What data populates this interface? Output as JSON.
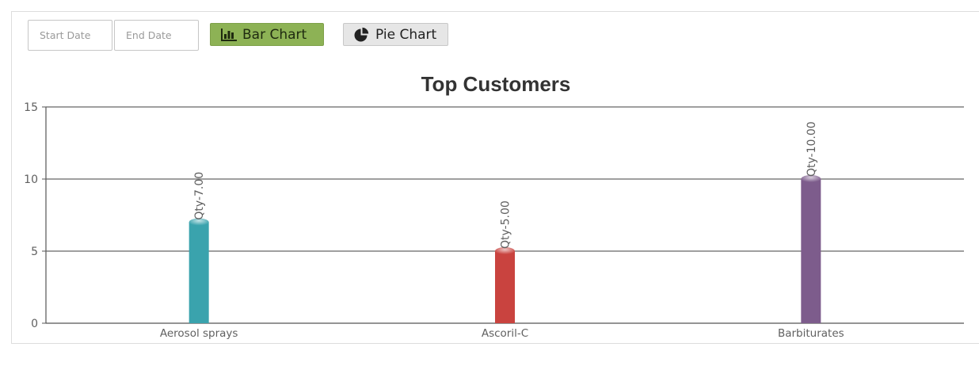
{
  "filters": {
    "start_date_placeholder": "Start Date",
    "end_date_placeholder": "End Date"
  },
  "buttons": {
    "bar_chart_label": "Bar Chart",
    "bar_chart_icon": "bar-chart-icon",
    "pie_chart_label": "Pie Chart",
    "pie_chart_icon": "pie-chart-icon"
  },
  "colors": {
    "active_button": "#8db255",
    "inactive_button": "#e6e6e6"
  },
  "chart_data": {
    "type": "bar",
    "title": "Top Customers",
    "categories": [
      "Aerosol sprays",
      "Ascoril-C",
      "Barbiturates"
    ],
    "values": [
      7,
      5,
      10
    ],
    "data_labels": [
      "Qty-7.00",
      "Qty-5.00",
      "Qty-10.00"
    ],
    "colors": [
      "#3aa3ad",
      "#c9433f",
      "#7d5c8c"
    ],
    "ylim": [
      0,
      15
    ],
    "yticks": [
      0,
      5,
      10,
      15
    ],
    "grid": true,
    "xlabel": "",
    "ylabel": ""
  }
}
